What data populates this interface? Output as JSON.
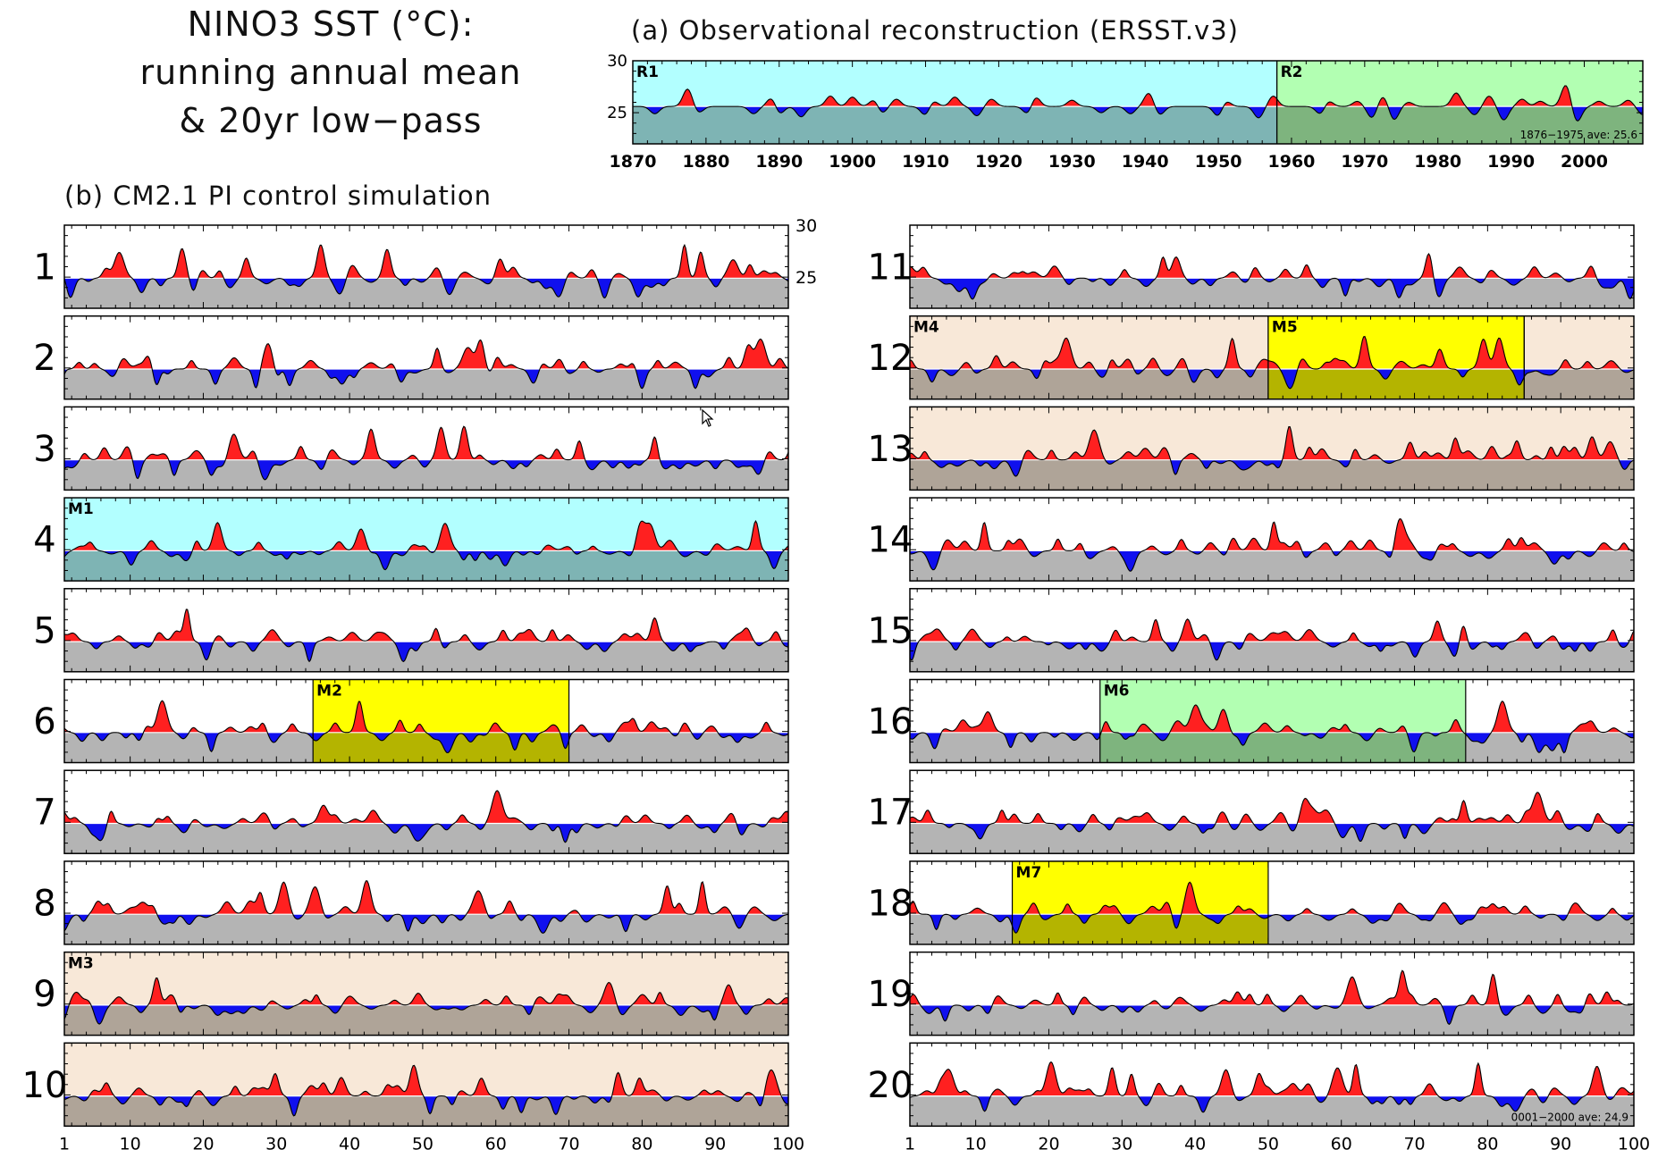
{
  "title": {
    "lines": [
      "NINO3 SST (°C):",
      "running annual mean",
      "& 20yr low−pass"
    ]
  },
  "panel_a": {
    "heading": "(a) Observational reconstruction (ERSST.v3)",
    "note": "1876−1975 ave: 25.6"
  },
  "panel_b": {
    "heading": "(b) CM2.1 PI control simulation",
    "note": "0001−2000 ave: 24.9"
  },
  "icons": {
    "cursor": "mouse-pointer-icon"
  },
  "colors": {
    "warm_anomaly": "#ff2020",
    "cold_anomaly": "#1010ee",
    "below_mean_fill": "#b4b4b4",
    "cyan_epoch": "#b2ffff",
    "green_epoch": "#b2ffb2",
    "yellow_epoch": "#ffff00",
    "tan_epoch": "#f8e8d8"
  },
  "chart_data": [
    {
      "type": "area",
      "panel": "a",
      "x_range": [
        1870,
        2008
      ],
      "ylim": [
        22,
        30
      ],
      "y_ticks": [
        "25",
        "30"
      ],
      "x_ticks": [
        "1870",
        "1880",
        "1890",
        "1900",
        "1910",
        "1920",
        "1930",
        "1940",
        "1950",
        "1960",
        "1970",
        "1980",
        "1990",
        "2000"
      ],
      "mean": 25.6,
      "peaks": [
        {
          "x": 1877.5,
          "dy": 1.7
        },
        {
          "x": 1889,
          "dy": 0.9
        },
        {
          "x": 1897,
          "dy": 1.0
        },
        {
          "x": 1900,
          "dy": 0.9
        },
        {
          "x": 1903,
          "dy": 0.7
        },
        {
          "x": 1906,
          "dy": 0.7
        },
        {
          "x": 1911,
          "dy": 0.6
        },
        {
          "x": 1914,
          "dy": 0.9
        },
        {
          "x": 1919,
          "dy": 0.7
        },
        {
          "x": 1925,
          "dy": 1.0
        },
        {
          "x": 1930,
          "dy": 0.6
        },
        {
          "x": 1940.5,
          "dy": 1.3
        },
        {
          "x": 1951,
          "dy": 0.6
        },
        {
          "x": 1957.5,
          "dy": 1.0
        },
        {
          "x": 1965,
          "dy": 0.6
        },
        {
          "x": 1969,
          "dy": 0.5
        },
        {
          "x": 1972.5,
          "dy": 1.0
        },
        {
          "x": 1976,
          "dy": 0.4
        },
        {
          "x": 1982.5,
          "dy": 1.3
        },
        {
          "x": 1987,
          "dy": 1.0
        },
        {
          "x": 1991.5,
          "dy": 0.7
        },
        {
          "x": 1994,
          "dy": 0.5
        },
        {
          "x": 1997.5,
          "dy": 2.1
        },
        {
          "x": 2002,
          "dy": 0.5
        },
        {
          "x": 2006,
          "dy": 0.6
        }
      ],
      "troughs": [
        {
          "x": 1873,
          "dy": -0.7
        },
        {
          "x": 1879,
          "dy": -0.6
        },
        {
          "x": 1886.5,
          "dy": -0.7
        },
        {
          "x": 1890,
          "dy": -0.8
        },
        {
          "x": 1893,
          "dy": -1.0
        },
        {
          "x": 1904,
          "dy": -0.7
        },
        {
          "x": 1910,
          "dy": -0.9
        },
        {
          "x": 1917,
          "dy": -0.9
        },
        {
          "x": 1924,
          "dy": -0.8
        },
        {
          "x": 1934,
          "dy": -0.6
        },
        {
          "x": 1938,
          "dy": -0.7
        },
        {
          "x": 1942,
          "dy": -0.8
        },
        {
          "x": 1950,
          "dy": -1.0
        },
        {
          "x": 1955.5,
          "dy": -1.1
        },
        {
          "x": 1964,
          "dy": -0.8
        },
        {
          "x": 1971,
          "dy": -1.1
        },
        {
          "x": 1974,
          "dy": -1.3
        },
        {
          "x": 1985,
          "dy": -0.8
        },
        {
          "x": 1989,
          "dy": -1.3
        },
        {
          "x": 1999,
          "dy": -1.5
        },
        {
          "x": 2008,
          "dy": -0.8
        }
      ],
      "epochs": [
        {
          "label": "R1",
          "start": 1870,
          "end": 1958,
          "color": "cyan"
        },
        {
          "label": "R2",
          "start": 1958,
          "end": 2008,
          "color": "green"
        }
      ]
    },
    {
      "type": "area",
      "panel": "b",
      "x_range": [
        1,
        100
      ],
      "ylim": [
        22,
        30
      ],
      "y_ticks": [
        "25",
        "30"
      ],
      "x_tick_labels": [
        "1",
        "10",
        "20",
        "30",
        "40",
        "50",
        "60",
        "70",
        "80",
        "90",
        "100"
      ],
      "rows": [
        {
          "label": "1",
          "seed": 101
        },
        {
          "label": "2",
          "seed": 202
        },
        {
          "label": "3",
          "seed": 303
        },
        {
          "label": "4",
          "seed": 404,
          "epochs": [
            {
              "label": "M1",
              "start": 1,
              "end": 100,
              "color": "cyan"
            }
          ]
        },
        {
          "label": "5",
          "seed": 505
        },
        {
          "label": "6",
          "seed": 606,
          "epochs": [
            {
              "label": "M2",
              "start": 35,
              "end": 70,
              "color": "yellow"
            }
          ]
        },
        {
          "label": "7",
          "seed": 707
        },
        {
          "label": "8",
          "seed": 808
        },
        {
          "label": "9",
          "seed": 909,
          "epochs": [
            {
              "label": "M3",
              "start": 1,
              "end": 100,
              "color": "tan"
            }
          ]
        },
        {
          "label": "10",
          "seed": 1010,
          "epochs": [
            {
              "label": "",
              "start": 1,
              "end": 100,
              "color": "tan"
            }
          ]
        },
        {
          "label": "11",
          "seed": 1111
        },
        {
          "label": "12",
          "seed": 1212,
          "epochs": [
            {
              "label": "M4",
              "start": 1,
              "end": 50,
              "color": "tan"
            },
            {
              "label": "M5",
              "start": 50,
              "end": 85,
              "color": "yellow"
            },
            {
              "label": "",
              "start": 85,
              "end": 100,
              "color": "tan"
            }
          ]
        },
        {
          "label": "13",
          "seed": 1313,
          "epochs": [
            {
              "label": "",
              "start": 1,
              "end": 100,
              "color": "tan"
            }
          ]
        },
        {
          "label": "14",
          "seed": 1414
        },
        {
          "label": "15",
          "seed": 1515
        },
        {
          "label": "16",
          "seed": 1616,
          "epochs": [
            {
              "label": "M6",
              "start": 27,
              "end": 77,
              "color": "green"
            }
          ]
        },
        {
          "label": "17",
          "seed": 1717
        },
        {
          "label": "18",
          "seed": 1818,
          "epochs": [
            {
              "label": "M7",
              "start": 15,
              "end": 50,
              "color": "yellow"
            }
          ]
        },
        {
          "label": "19",
          "seed": 1919
        },
        {
          "label": "20",
          "seed": 2020
        }
      ]
    }
  ]
}
